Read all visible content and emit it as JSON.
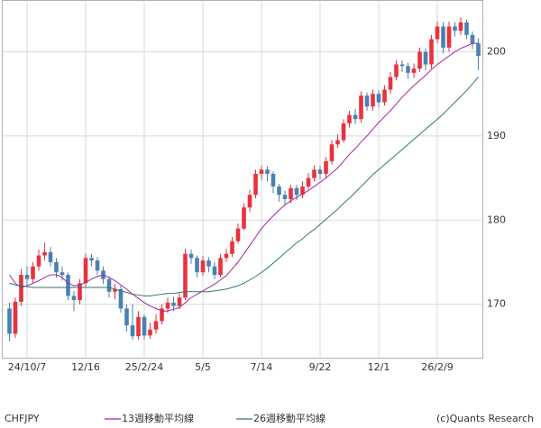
{
  "chart_data": {
    "type": "candlestick",
    "title": "CHFJPY",
    "credit": "(c)Quants Research",
    "categories": [
      null,
      null,
      null,
      "24/10/7",
      null,
      null,
      null,
      null,
      null,
      null,
      null,
      null,
      null,
      "12/16",
      null,
      null,
      null,
      null,
      null,
      null,
      null,
      null,
      null,
      "25/2/24",
      null,
      null,
      null,
      null,
      null,
      null,
      null,
      null,
      null,
      "5/5",
      null,
      null,
      null,
      null,
      null,
      null,
      null,
      null,
      null,
      "7/14",
      null,
      null,
      null,
      null,
      null,
      null,
      null,
      null,
      null,
      "9/22",
      null,
      null,
      null,
      null,
      null,
      null,
      null,
      null,
      null,
      "12/1",
      null,
      null,
      null,
      null,
      null,
      null,
      null,
      null,
      null,
      "26/2/9",
      null,
      null,
      null,
      null,
      null,
      null,
      null
    ],
    "open": [
      169.5,
      166.5,
      170.3,
      173.5,
      173.0,
      174.5,
      175.8,
      176.2,
      175.0,
      173.8,
      173.5,
      171.0,
      170.5,
      172.5,
      175.5,
      175.2,
      174.0,
      173.0,
      171.5,
      171.8,
      169.5,
      167.5,
      166.2,
      168.5,
      166.3,
      167.0,
      168.0,
      169.5,
      170.2,
      169.8,
      170.8,
      176.0,
      175.5,
      173.8,
      175.2,
      174.5,
      173.5,
      175.5,
      176.0,
      177.5,
      179.0,
      181.5,
      183.0,
      185.5,
      186.0,
      185.5,
      184.0,
      183.0,
      182.5,
      183.8,
      183.0,
      184.0,
      185.0,
      186.0,
      185.5,
      187.0,
      189.0,
      189.5,
      191.5,
      192.5,
      192.0,
      194.8,
      193.5,
      195.0,
      194.0,
      195.5,
      197.0,
      198.5,
      198.3,
      197.5,
      198.0,
      200.0,
      198.5,
      201.5,
      203.0,
      200.5,
      203.0,
      202.5,
      203.5,
      202.0,
      201.0
    ],
    "high": [
      170.2,
      170.8,
      174.2,
      174.5,
      175.0,
      176.5,
      177.3,
      176.8,
      175.5,
      174.5,
      173.8,
      171.6,
      173.0,
      176.0,
      176.0,
      175.6,
      174.5,
      173.3,
      172.4,
      172.2,
      170.0,
      170.0,
      169.2,
      168.8,
      167.8,
      168.8,
      170.0,
      170.8,
      170.9,
      171.3,
      176.6,
      176.5,
      175.8,
      175.7,
      175.6,
      175.0,
      176.0,
      176.6,
      178.0,
      179.6,
      182.0,
      183.6,
      186.0,
      186.5,
      186.4,
      185.8,
      184.3,
      183.5,
      184.2,
      184.2,
      184.6,
      185.6,
      186.5,
      186.5,
      187.5,
      189.5,
      190.2,
      192.0,
      193.0,
      193.2,
      195.3,
      195.2,
      195.5,
      195.4,
      196.0,
      197.6,
      199.0,
      199.0,
      198.7,
      198.6,
      200.5,
      200.4,
      202.0,
      203.6,
      203.5,
      203.6,
      203.5,
      204.1,
      203.8,
      202.4,
      201.6
    ],
    "low": [
      165.6,
      166.0,
      169.8,
      172.2,
      172.5,
      174.0,
      175.2,
      174.5,
      173.2,
      172.8,
      170.5,
      169.2,
      170.0,
      172.0,
      174.5,
      173.5,
      172.4,
      170.8,
      170.6,
      169.0,
      166.8,
      165.8,
      165.8,
      165.8,
      165.9,
      166.5,
      167.6,
      169.0,
      169.2,
      169.4,
      170.5,
      174.8,
      173.2,
      173.4,
      173.8,
      173.0,
      173.2,
      175.0,
      175.6,
      177.2,
      178.8,
      181.0,
      182.6,
      184.8,
      184.6,
      183.2,
      182.2,
      181.8,
      182.0,
      182.4,
      182.6,
      183.6,
      184.6,
      184.8,
      185.0,
      186.6,
      188.6,
      189.2,
      191.0,
      191.4,
      191.6,
      193.0,
      193.0,
      193.4,
      193.6,
      195.0,
      196.6,
      197.6,
      196.8,
      196.9,
      197.6,
      197.8,
      198.0,
      201.0,
      199.8,
      200.0,
      201.8,
      202.0,
      201.5,
      200.3,
      197.8
    ],
    "close": [
      166.5,
      170.3,
      173.5,
      173.0,
      174.5,
      175.8,
      176.2,
      175.0,
      173.8,
      173.5,
      171.0,
      170.5,
      172.5,
      175.5,
      175.2,
      174.0,
      173.0,
      171.5,
      171.8,
      169.5,
      167.5,
      166.2,
      168.5,
      166.3,
      167.0,
      168.0,
      169.5,
      170.2,
      169.8,
      170.8,
      176.0,
      175.5,
      173.8,
      175.2,
      174.5,
      173.5,
      175.5,
      176.0,
      177.5,
      179.0,
      181.5,
      183.0,
      185.5,
      186.0,
      185.5,
      184.0,
      183.0,
      182.5,
      183.8,
      183.0,
      184.0,
      185.0,
      186.0,
      185.5,
      187.0,
      189.0,
      189.5,
      191.5,
      192.5,
      192.0,
      194.8,
      193.5,
      195.0,
      194.0,
      195.5,
      197.0,
      198.5,
      198.3,
      197.5,
      198.0,
      200.0,
      198.5,
      201.5,
      203.0,
      200.5,
      203.0,
      202.5,
      203.5,
      202.0,
      201.0,
      199.5
    ],
    "up_color": "#e8323c",
    "down_color": "#4a80b2",
    "series": [
      {
        "name": "13週移動平均線",
        "color": "#a0289a",
        "values": [
          173.5,
          172.5,
          172.0,
          172.2,
          172.5,
          172.8,
          173.2,
          173.5,
          173.5,
          173.2,
          172.5,
          172.2,
          172.3,
          172.6,
          173.0,
          173.3,
          173.5,
          173.2,
          172.8,
          172.3,
          171.8,
          171.2,
          170.7,
          170.2,
          169.8,
          169.5,
          169.2,
          169.2,
          169.4,
          169.6,
          170.2,
          170.8,
          171.2,
          171.6,
          172.0,
          172.4,
          172.9,
          173.4,
          174.2,
          175.0,
          176.0,
          177.0,
          178.0,
          179.0,
          179.8,
          180.5,
          181.2,
          181.8,
          182.3,
          182.7,
          183.1,
          183.5,
          184.0,
          184.5,
          185.0,
          185.6,
          186.2,
          187.0,
          187.8,
          188.5,
          189.3,
          190.0,
          190.8,
          191.6,
          192.3,
          193.0,
          193.8,
          194.6,
          195.3,
          196.0,
          196.6,
          197.2,
          197.9,
          198.5,
          199.0,
          199.5,
          200.0,
          200.4,
          200.7,
          201.0,
          201.0
        ]
      },
      {
        "name": "26週移動平均線",
        "color": "#2e7a6c",
        "values": [
          172.5,
          172.3,
          172.2,
          172.1,
          172.0,
          172.0,
          172.0,
          172.0,
          172.0,
          172.0,
          172.0,
          172.0,
          172.0,
          172.0,
          172.0,
          172.0,
          172.0,
          172.0,
          171.8,
          171.6,
          171.4,
          171.2,
          171.1,
          171.0,
          171.0,
          171.1,
          171.2,
          171.3,
          171.3,
          171.4,
          171.5,
          171.5,
          171.5,
          171.5,
          171.5,
          171.6,
          171.7,
          171.8,
          172.0,
          172.2,
          172.5,
          172.9,
          173.3,
          173.8,
          174.3,
          174.9,
          175.5,
          176.1,
          176.7,
          177.3,
          177.8,
          178.4,
          178.9,
          179.5,
          180.1,
          180.7,
          181.3,
          182.0,
          182.6,
          183.3,
          184.0,
          184.7,
          185.4,
          186.0,
          186.6,
          187.2,
          187.8,
          188.4,
          189.0,
          189.6,
          190.2,
          190.8,
          191.4,
          192.0,
          192.6,
          193.3,
          194.0,
          194.7,
          195.4,
          196.2,
          197.0
        ]
      }
    ],
    "ylim": [
      163.6,
      206.1
    ],
    "yticks": [
      170,
      180,
      190,
      200
    ],
    "grid": true
  }
}
